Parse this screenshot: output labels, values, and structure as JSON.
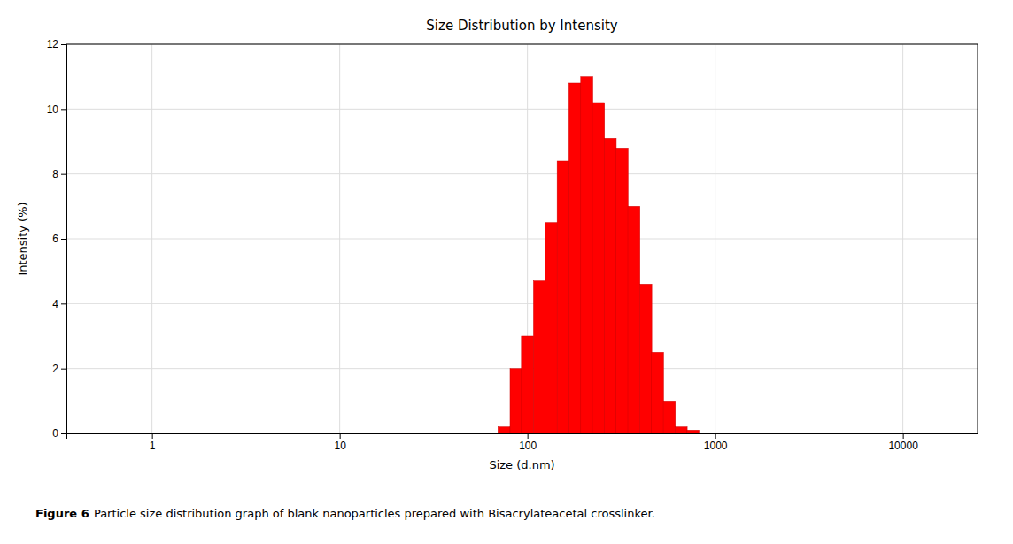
{
  "chart_data": {
    "type": "bar",
    "title": "Size Distribution by Intensity",
    "xlabel": "Size (d.nm)",
    "ylabel": "Intensity (%)",
    "caption_label": "Figure 6",
    "caption": "Particle size distribution graph of blank nanoparticles prepared with Bisacrylateacetal crosslinker.",
    "x": [
      75,
      87,
      100,
      116,
      134,
      155,
      179,
      207,
      239,
      276,
      319,
      369,
      427,
      493,
      570,
      659,
      762
    ],
    "values": [
      0.2,
      2.0,
      3.0,
      4.7,
      6.5,
      8.4,
      10.8,
      11.0,
      10.2,
      9.1,
      8.8,
      7.0,
      4.6,
      2.5,
      1.0,
      0.2,
      0.1
    ],
    "color": "#FF0000",
    "log": "x",
    "xlim": [
      0.35,
      25000
    ],
    "xticks": [
      1,
      10,
      100,
      1000,
      10000
    ],
    "ylim": [
      0,
      12
    ],
    "yticks": [
      0,
      2,
      4,
      6,
      8,
      10,
      12
    ],
    "grid": true
  }
}
